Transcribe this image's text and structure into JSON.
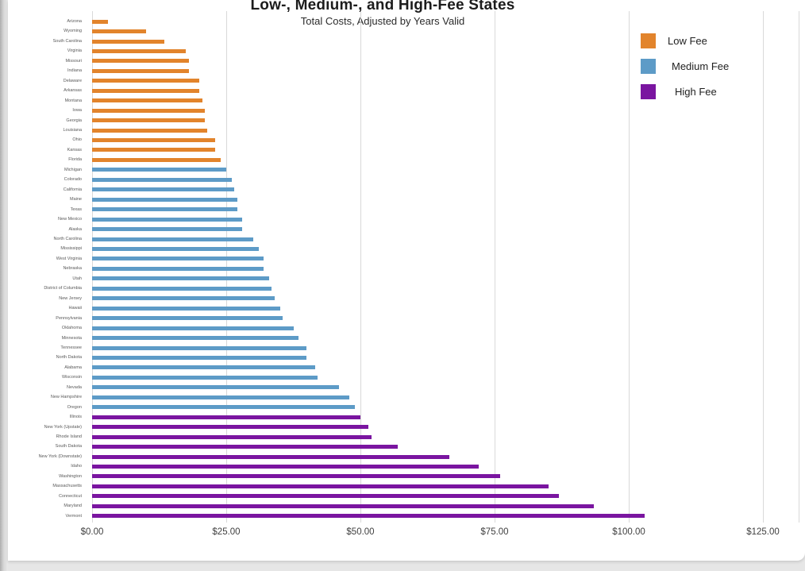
{
  "colors": {
    "low": "#E2842C",
    "medium": "#5D9BC7",
    "high": "#7A15A0",
    "gridline": "#d9d9d9"
  },
  "chart_data": {
    "type": "bar",
    "orientation": "horizontal",
    "title": "Low-, Medium-, and High-Fee States",
    "subtitle": "Total Costs, Adjusted by Years Valid",
    "xlabel": "",
    "ylabel": "",
    "xlim": [
      0,
      125
    ],
    "x_ticks": [
      {
        "label": "$0.00",
        "value": 0
      },
      {
        "label": "$25.00",
        "value": 25
      },
      {
        "label": "$50.00",
        "value": 50
      },
      {
        "label": "$75.00",
        "value": 75
      },
      {
        "label": "$100.00",
        "value": 100
      },
      {
        "label": "$125.00",
        "value": 125
      }
    ],
    "grid": "vertical",
    "legend": {
      "position": "top-right",
      "entries": [
        {
          "label": "Low Fee",
          "category": "low"
        },
        {
          "label": "Medium Fee",
          "category": "medium"
        },
        {
          "label": "High Fee",
          "category": "high"
        }
      ]
    },
    "bars": [
      {
        "state": "Arizona",
        "value": 3,
        "category": "low"
      },
      {
        "state": "Wyoming",
        "value": 10,
        "category": "low"
      },
      {
        "state": "South Carolina",
        "value": 13.5,
        "category": "low"
      },
      {
        "state": "Virginia",
        "value": 17.5,
        "category": "low"
      },
      {
        "state": "Missouri",
        "value": 18,
        "category": "low"
      },
      {
        "state": "Indiana",
        "value": 18,
        "category": "low"
      },
      {
        "state": "Delaware",
        "value": 20,
        "category": "low"
      },
      {
        "state": "Arkansas",
        "value": 20,
        "category": "low"
      },
      {
        "state": "Montana",
        "value": 20.5,
        "category": "low"
      },
      {
        "state": "Iowa",
        "value": 21,
        "category": "low"
      },
      {
        "state": "Georgia",
        "value": 21,
        "category": "low"
      },
      {
        "state": "Louisiana",
        "value": 21.5,
        "category": "low"
      },
      {
        "state": "Ohio",
        "value": 23,
        "category": "low"
      },
      {
        "state": "Kansas",
        "value": 23,
        "category": "low"
      },
      {
        "state": "Florida",
        "value": 24,
        "category": "low"
      },
      {
        "state": "Michigan",
        "value": 25,
        "category": "medium"
      },
      {
        "state": "Colorado",
        "value": 26,
        "category": "medium"
      },
      {
        "state": "California",
        "value": 26.5,
        "category": "medium"
      },
      {
        "state": "Maine",
        "value": 27,
        "category": "medium"
      },
      {
        "state": "Texas",
        "value": 27,
        "category": "medium"
      },
      {
        "state": "New Mexico",
        "value": 28,
        "category": "medium"
      },
      {
        "state": "Alaska",
        "value": 28,
        "category": "medium"
      },
      {
        "state": "North Carolina",
        "value": 30,
        "category": "medium"
      },
      {
        "state": "Mississippi",
        "value": 31,
        "category": "medium"
      },
      {
        "state": "West Virginia",
        "value": 32,
        "category": "medium"
      },
      {
        "state": "Nebraska",
        "value": 32,
        "category": "medium"
      },
      {
        "state": "Utah",
        "value": 33,
        "category": "medium"
      },
      {
        "state": "District of Columbia",
        "value": 33.5,
        "category": "medium"
      },
      {
        "state": "New Jersey",
        "value": 34,
        "category": "medium"
      },
      {
        "state": "Hawaii",
        "value": 35,
        "category": "medium"
      },
      {
        "state": "Pennsylvania",
        "value": 35.5,
        "category": "medium"
      },
      {
        "state": "Oklahoma",
        "value": 37.5,
        "category": "medium"
      },
      {
        "state": "Minnesota",
        "value": 38.5,
        "category": "medium"
      },
      {
        "state": "Tennessee",
        "value": 40,
        "category": "medium"
      },
      {
        "state": "North Dakota",
        "value": 40,
        "category": "medium"
      },
      {
        "state": "Alabama",
        "value": 41.5,
        "category": "medium"
      },
      {
        "state": "Wisconsin",
        "value": 42,
        "category": "medium"
      },
      {
        "state": "Nevada",
        "value": 46,
        "category": "medium"
      },
      {
        "state": "New Hampshire",
        "value": 48,
        "category": "medium"
      },
      {
        "state": "Oregon",
        "value": 49,
        "category": "medium"
      },
      {
        "state": "Illinois",
        "value": 50,
        "category": "high"
      },
      {
        "state": "New York (Upstate)",
        "value": 51.5,
        "category": "high"
      },
      {
        "state": "Rhode Island",
        "value": 52,
        "category": "high"
      },
      {
        "state": "South Dakota",
        "value": 57,
        "category": "high"
      },
      {
        "state": "New York (Downstate)",
        "value": 66.5,
        "category": "high"
      },
      {
        "state": "Idaho",
        "value": 72,
        "category": "high"
      },
      {
        "state": "Washington",
        "value": 76,
        "category": "high"
      },
      {
        "state": "Massachusetts",
        "value": 85,
        "category": "high"
      },
      {
        "state": "Connecticut",
        "value": 87,
        "category": "high"
      },
      {
        "state": "Maryland",
        "value": 93.5,
        "category": "high"
      },
      {
        "state": "Vermont",
        "value": 103,
        "category": "high"
      }
    ]
  }
}
